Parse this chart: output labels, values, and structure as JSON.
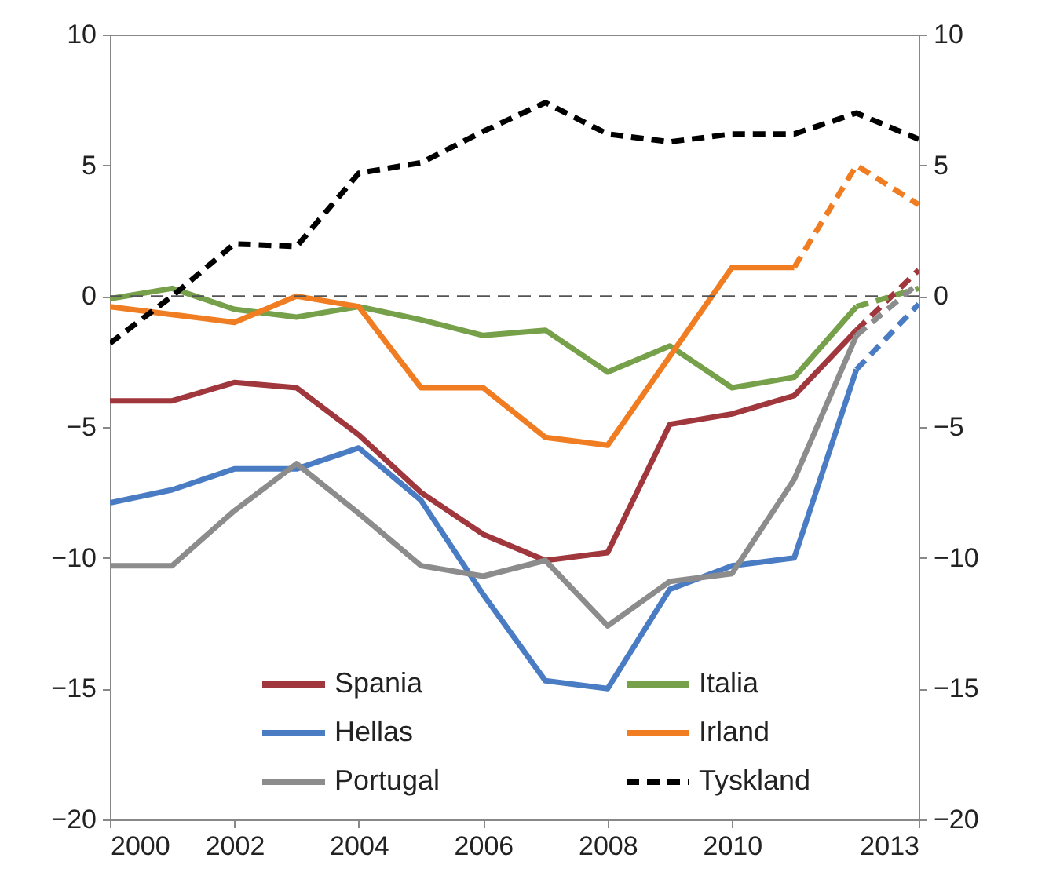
{
  "chart_data": {
    "type": "line",
    "xlim": [
      2000,
      2013
    ],
    "xticks": [
      2000,
      2002,
      2004,
      2006,
      2008,
      2010,
      2013
    ],
    "ylim": [
      -20,
      10
    ],
    "yticks": [
      -20,
      -15,
      -10,
      -5,
      0,
      5,
      10
    ],
    "y2lim": [
      -20,
      10
    ],
    "y2ticks": [
      -20,
      -15,
      -10,
      -5,
      0,
      5,
      10
    ],
    "legend": "bottom",
    "ref_lines": [
      {
        "axis": "y",
        "value": 0,
        "color": "#555555",
        "line_style": "dashed"
      }
    ],
    "series": [
      {
        "name": "Spania",
        "color": "#a0373c",
        "line_style": "solid",
        "x": [
          2000,
          2001,
          2002,
          2003,
          2004,
          2005,
          2006,
          2007,
          2008,
          2009,
          2010,
          2011,
          2012
        ],
        "values": [
          -4.0,
          -4.0,
          -3.3,
          -3.5,
          -5.3,
          -7.5,
          -9.1,
          -10.1,
          -9.8,
          -4.9,
          -4.5,
          -3.8,
          -1.3
        ]
      },
      {
        "name": "Italia",
        "color": "#77a04a",
        "line_style": "solid",
        "x": [
          2000,
          2001,
          2002,
          2003,
          2004,
          2005,
          2006,
          2007,
          2008,
          2009,
          2010,
          2011,
          2012
        ],
        "values": [
          -0.1,
          0.3,
          -0.5,
          -0.8,
          -0.4,
          -0.9,
          -1.5,
          -1.3,
          -2.9,
          -1.9,
          -3.5,
          -3.1,
          -0.4
        ]
      },
      {
        "name": "Hellas",
        "color": "#4a7cc4",
        "line_style": "solid",
        "x": [
          2000,
          2001,
          2002,
          2003,
          2004,
          2005,
          2006,
          2007,
          2008,
          2009,
          2010,
          2011,
          2012
        ],
        "values": [
          -7.9,
          -7.4,
          -6.6,
          -6.6,
          -5.8,
          -7.8,
          -11.4,
          -14.7,
          -15.0,
          -11.2,
          -10.3,
          -10.0,
          -2.8
        ]
      },
      {
        "name": "Irland",
        "color": "#f07d22",
        "line_style": "solid",
        "x": [
          2000,
          2001,
          2002,
          2003,
          2004,
          2005,
          2006,
          2007,
          2008,
          2009,
          2010,
          2011
        ],
        "values": [
          -0.4,
          -0.7,
          -1.0,
          0.0,
          -0.4,
          -3.5,
          -3.5,
          -5.4,
          -5.7,
          -2.3,
          1.1,
          1.1
        ]
      },
      {
        "name": "Portugal",
        "color": "#8c8c8c",
        "line_style": "solid",
        "x": [
          2000,
          2001,
          2002,
          2003,
          2004,
          2005,
          2006,
          2007,
          2008,
          2009,
          2010,
          2011,
          2012
        ],
        "values": [
          -10.3,
          -10.3,
          -8.2,
          -6.4,
          -8.3,
          -10.3,
          -10.7,
          -10.1,
          -12.6,
          -10.9,
          -10.6,
          -7.0,
          -1.5
        ]
      },
      {
        "name": "Tyskland",
        "color": "#000000",
        "line_style": "dashed",
        "x": [
          2000,
          2001,
          2002,
          2003,
          2004,
          2005,
          2006,
          2007,
          2008,
          2009,
          2010,
          2011,
          2012,
          2013
        ],
        "values": [
          -1.8,
          0.0,
          2.0,
          1.9,
          4.7,
          5.1,
          6.3,
          7.4,
          6.2,
          5.9,
          6.2,
          6.2,
          7.0,
          6.0
        ]
      },
      {
        "color": "#a0373c",
        "line_style": "dashed",
        "x": [
          2012,
          2013
        ],
        "values": [
          -1.3,
          1.0
        ]
      },
      {
        "color": "#77a04a",
        "line_style": "dashed",
        "x": [
          2012,
          2013
        ],
        "values": [
          -0.4,
          0.3
        ]
      },
      {
        "color": "#4a7cc4",
        "line_style": "dashed",
        "x": [
          2012,
          2013
        ],
        "values": [
          -2.8,
          -0.3
        ]
      },
      {
        "color": "#f07d22",
        "line_style": "dashed",
        "x": [
          2011,
          2012,
          2013
        ],
        "values": [
          1.1,
          5.0,
          3.5
        ]
      },
      {
        "color": "#8c8c8c",
        "line_style": "dashed",
        "x": [
          2012,
          2013
        ],
        "values": [
          -1.5,
          0.5
        ]
      }
    ]
  }
}
